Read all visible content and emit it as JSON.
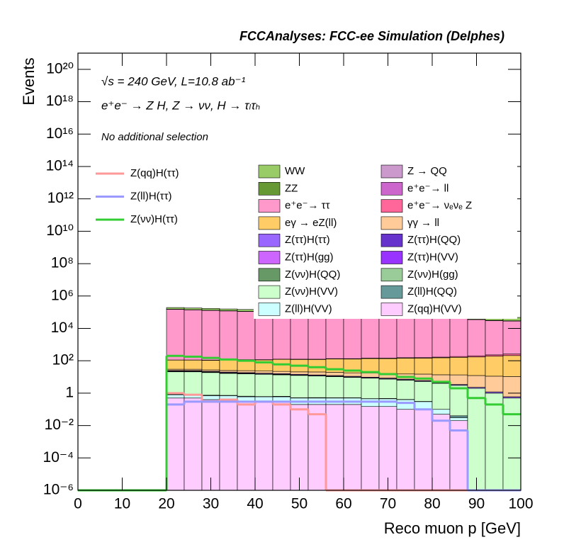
{
  "chart_data": {
    "type": "stacked-histogram",
    "title": "FCCAnalyses: FCC-ee Simulation (Delphes)",
    "annotations": [
      "√s = 240 GeV, L=10.8 ab⁻¹",
      "e⁺e⁻ → Z H, Z → νν, H → τₗτₕ",
      "No additional selection"
    ],
    "x_label": "Reco muon p [GeV]",
    "y_label": "Events",
    "log_y": true,
    "xlim": [
      0,
      100
    ],
    "xticks": [
      0,
      10,
      20,
      30,
      40,
      50,
      60,
      70,
      80,
      90,
      100
    ],
    "ylim": [
      1e-06,
      1e+21
    ],
    "yticks": [
      {
        "value": 1e-06,
        "label": "10⁻⁶"
      },
      {
        "value": 0.0001,
        "label": "10⁻⁴"
      },
      {
        "value": 0.01,
        "label": "10⁻²"
      },
      1,
      {
        "value": 100,
        "label": "10²"
      },
      {
        "value": 10000.0,
        "label": "10⁴"
      },
      {
        "value": 1000000.0,
        "label": "10⁶"
      },
      {
        "value": 100000000.0,
        "label": "10⁸"
      },
      {
        "value": 10000000000.0,
        "label": "10¹⁰"
      },
      {
        "value": 1000000000000.0,
        "label": "10¹²"
      },
      {
        "value": 100000000000000.0,
        "label": "10¹⁴"
      },
      {
        "value": 1e+16,
        "label": "10¹⁶"
      },
      {
        "value": 1e+18,
        "label": "10¹⁸"
      },
      {
        "value": 1e+20,
        "label": "10²⁰"
      }
    ],
    "bins": [
      0,
      4,
      8,
      12,
      16,
      20,
      24,
      28,
      32,
      36,
      40,
      44,
      48,
      52,
      56,
      60,
      64,
      68,
      72,
      76,
      80,
      84,
      88,
      92,
      96,
      100
    ],
    "series": [
      {
        "name": "WW",
        "color": "#99cc66",
        "values": [
          0,
          0,
          0,
          0,
          0,
          40000,
          38000,
          36000,
          35000,
          34000,
          32000,
          31000,
          30000,
          29000,
          28000,
          27000,
          26000,
          25000,
          24000,
          23000,
          22000,
          21000,
          20000,
          19000,
          18000
        ]
      },
      {
        "name": "Z → QQ",
        "color": "#cc99cc",
        "values": [
          0,
          0,
          0,
          0,
          0,
          30,
          28,
          26,
          24,
          22,
          20,
          18,
          16,
          14,
          12,
          10,
          9,
          8,
          7,
          6,
          5,
          4,
          3,
          2,
          1
        ]
      },
      {
        "name": "ZZ",
        "color": "#669933",
        "values": [
          0,
          0,
          0,
          0,
          0,
          3000,
          2900,
          2800,
          2700,
          2600,
          2500,
          2400,
          2300,
          2200,
          2100,
          2000,
          1900,
          1800,
          1700,
          1600,
          1500,
          1400,
          1300,
          1200,
          1100
        ]
      },
      {
        "name": "e⁺e⁻→ ll",
        "color": "#cc66cc",
        "values": [
          0,
          0,
          0,
          0,
          0,
          500,
          480,
          460,
          440,
          420,
          400,
          380,
          360,
          340,
          320,
          300,
          280,
          260,
          240,
          220,
          200,
          180,
          160,
          140,
          120
        ]
      },
      {
        "name": "e⁺e⁻→ ττ",
        "color": "#ff99cc",
        "values": [
          0,
          0,
          0,
          0,
          0,
          150000,
          140000,
          130000,
          120000,
          110000,
          100000,
          90000,
          85000,
          80000,
          75000,
          70000,
          65000,
          60000,
          55000,
          50000,
          45000,
          40000,
          35000,
          30000,
          28000
        ]
      },
      {
        "name": "e⁺e⁻→ νₑνₑ Z",
        "color": "#ff6699",
        "values": [
          0,
          0,
          0,
          0,
          0,
          2,
          2,
          3,
          3,
          3,
          4,
          4,
          5,
          5,
          6,
          7,
          8,
          9,
          10,
          12,
          15,
          20,
          30,
          40,
          50
        ]
      },
      {
        "name": "eγ → eZ(ll)",
        "color": "#ffcc66",
        "values": [
          0,
          0,
          0,
          0,
          0,
          80,
          80,
          80,
          90,
          90,
          90,
          100,
          100,
          100,
          110,
          110,
          120,
          120,
          130,
          130,
          140,
          150,
          160,
          180,
          200
        ]
      },
      {
        "name": "γγ → ll",
        "color": "#ffcc99",
        "values": [
          0,
          0,
          0,
          0,
          0,
          5,
          5,
          5,
          5,
          6,
          6,
          6,
          6,
          7,
          7,
          7,
          8,
          8,
          8,
          9,
          9,
          10,
          10,
          10,
          10
        ]
      },
      {
        "name": "Z(ττ)H(ττ)",
        "color": "#9966ff",
        "values": [
          0,
          0,
          0,
          0,
          0,
          2,
          2,
          1.8,
          1.7,
          1.6,
          1.5,
          1.4,
          1.3,
          1.2,
          1.1,
          1,
          0.9,
          0.8,
          0.7,
          0.6,
          0.5,
          0.4,
          0.3,
          0.2,
          0.1
        ]
      },
      {
        "name": "Z(ττ)H(QQ)",
        "color": "#6633cc",
        "values": [
          0,
          0,
          0,
          0,
          0,
          0.3,
          0.2,
          0.2,
          0.1,
          0.1,
          0.05,
          0.08,
          0.05,
          0.04,
          0.05,
          0.03,
          0.02,
          0.03,
          0.02,
          0.01,
          0,
          0,
          0,
          0,
          0
        ]
      },
      {
        "name": "Z(ττ)H(gg)",
        "color": "#cc66ff",
        "values": [
          0,
          0,
          0,
          0,
          0,
          0.3,
          0.3,
          0.2,
          0.2,
          0.15,
          0.1,
          0.1,
          0.08,
          0.05,
          0.05,
          0.04,
          0.03,
          0.02,
          0.02,
          0.01,
          0,
          0,
          0,
          0,
          0
        ]
      },
      {
        "name": "Z(ττ)H(VV)",
        "color": "#9933ff",
        "values": [
          0,
          0,
          0,
          0,
          0,
          0.4,
          0.4,
          0.35,
          0.3,
          0.3,
          0.25,
          0.25,
          0.2,
          0.2,
          0.15,
          0.15,
          0.1,
          0.1,
          0.08,
          0.05,
          0.03,
          0,
          0,
          0,
          0
        ]
      },
      {
        "name": "Z(νν)H(QQ)",
        "color": "#669966",
        "values": [
          0,
          0,
          0,
          0,
          0,
          1,
          1,
          0.8,
          0.8,
          0.6,
          0.5,
          0.5,
          0.4,
          0.3,
          0.3,
          0.2,
          0.2,
          0.1,
          0.1,
          0.05,
          0.03,
          0.02,
          0,
          0,
          0
        ]
      },
      {
        "name": "Z(νν)H(gg)",
        "color": "#99cc99",
        "values": [
          0,
          0,
          0,
          0,
          0,
          0.3,
          0.3,
          0.25,
          0.2,
          0.2,
          0.15,
          0.15,
          0.1,
          0.1,
          0.08,
          0.06,
          0.05,
          0.04,
          0.03,
          0.02,
          0.01,
          0,
          0,
          0,
          0
        ]
      },
      {
        "name": "Z(νν)H(VV)",
        "color": "#ccffcc",
        "values": [
          0,
          0,
          0,
          0,
          0,
          20,
          20,
          18,
          16,
          15,
          14,
          13,
          12,
          11,
          10,
          9,
          8,
          7,
          6,
          5,
          4,
          3,
          2,
          1,
          0.5
        ]
      },
      {
        "name": "Z(ll)H(QQ)",
        "color": "#669999",
        "values": [
          0,
          0,
          0,
          0,
          0,
          0.05,
          0.02,
          0.05,
          0.03,
          0.05,
          0.02,
          0.04,
          0.02,
          0.03,
          0.02,
          0.02,
          0.01,
          0.02,
          0.01,
          0.01,
          0,
          0.01,
          0,
          0,
          0
        ]
      },
      {
        "name": "Z(ll)H(VV)",
        "color": "#ccffff",
        "values": [
          0,
          0,
          0,
          0,
          0,
          0.3,
          0.3,
          0.3,
          0.3,
          0.3,
          0.3,
          0.3,
          0.3,
          0.3,
          0.3,
          0.3,
          0.3,
          0.3,
          0.3,
          0.2,
          0.05,
          0.01,
          0,
          0,
          0
        ]
      },
      {
        "name": "Z(qq)H(VV)",
        "color": "#ffccff",
        "values": [
          0,
          0,
          0,
          0,
          0,
          0.5,
          0.5,
          0.4,
          0.4,
          0.3,
          0.3,
          0.3,
          0.2,
          0.2,
          0.2,
          0.2,
          0.15,
          0.15,
          0.1,
          0.1,
          0.05,
          0.02,
          0,
          0,
          0
        ]
      }
    ],
    "signals": [
      {
        "name": "Z(qq)H(ττ)",
        "color": "#ff9999",
        "values": [
          0,
          0,
          0,
          0,
          0,
          1,
          0.8,
          0.3,
          0.4,
          0.2,
          0.3,
          0.2,
          0.1,
          0.05,
          0,
          0,
          0,
          0,
          0,
          0,
          0,
          0,
          0,
          0,
          0
        ]
      },
      {
        "name": "Z(ll)H(ττ)",
        "color": "#9999ff",
        "values": [
          0,
          0,
          0,
          0,
          0,
          0.2,
          0.3,
          0.3,
          0.3,
          0.3,
          0.3,
          0.3,
          0.3,
          0.3,
          0.3,
          0.3,
          0.3,
          0.3,
          0.25,
          0.1,
          0.02,
          0.005,
          0,
          0,
          0
        ]
      },
      {
        "name": "Z(νν)H(ττ)",
        "color": "#33cc33",
        "values": [
          0,
          0,
          0,
          0,
          0,
          200,
          180,
          150,
          120,
          100,
          80,
          60,
          50,
          40,
          30,
          25,
          20,
          15,
          10,
          8,
          5,
          2,
          0.5,
          0.2,
          0.05
        ]
      }
    ]
  }
}
